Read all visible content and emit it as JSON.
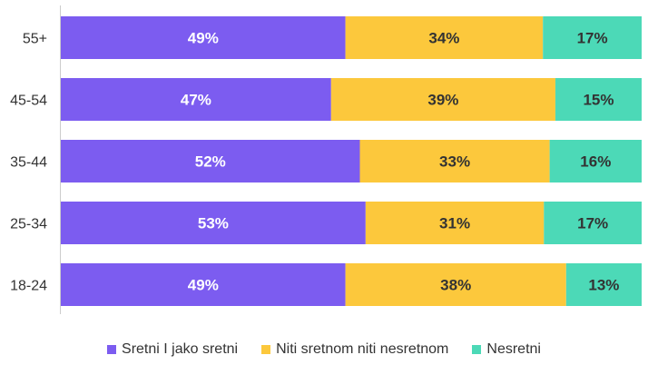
{
  "chart_data": {
    "type": "bar",
    "orientation": "horizontal",
    "stacked": true,
    "normalized": true,
    "categories": [
      "55+",
      "45-54",
      "35-44",
      "25-34",
      "18-24"
    ],
    "series": [
      {
        "name": "Sretni I jako sretni",
        "values": [
          49,
          47,
          52,
          53,
          49
        ],
        "labels": [
          "49%",
          "47%",
          "52%",
          "53%",
          "49%"
        ],
        "color": "#7c5cf0",
        "label_color": "#ffffff"
      },
      {
        "name": "Niti sretnom niti nesretnom",
        "values": [
          34,
          39,
          33,
          31,
          38
        ],
        "labels": [
          "34%",
          "39%",
          "33%",
          "31%",
          "38%"
        ],
        "color": "#fcc83c",
        "label_color": "#333333"
      },
      {
        "name": "Nesretni",
        "values": [
          17,
          15,
          16,
          17,
          13
        ],
        "labels": [
          "17%",
          "15%",
          "16%",
          "17%",
          "13%"
        ],
        "color": "#4cd9b7",
        "label_color": "#333333"
      }
    ],
    "xlim": [
      0,
      100
    ],
    "grid": false,
    "legend": "bottom"
  }
}
